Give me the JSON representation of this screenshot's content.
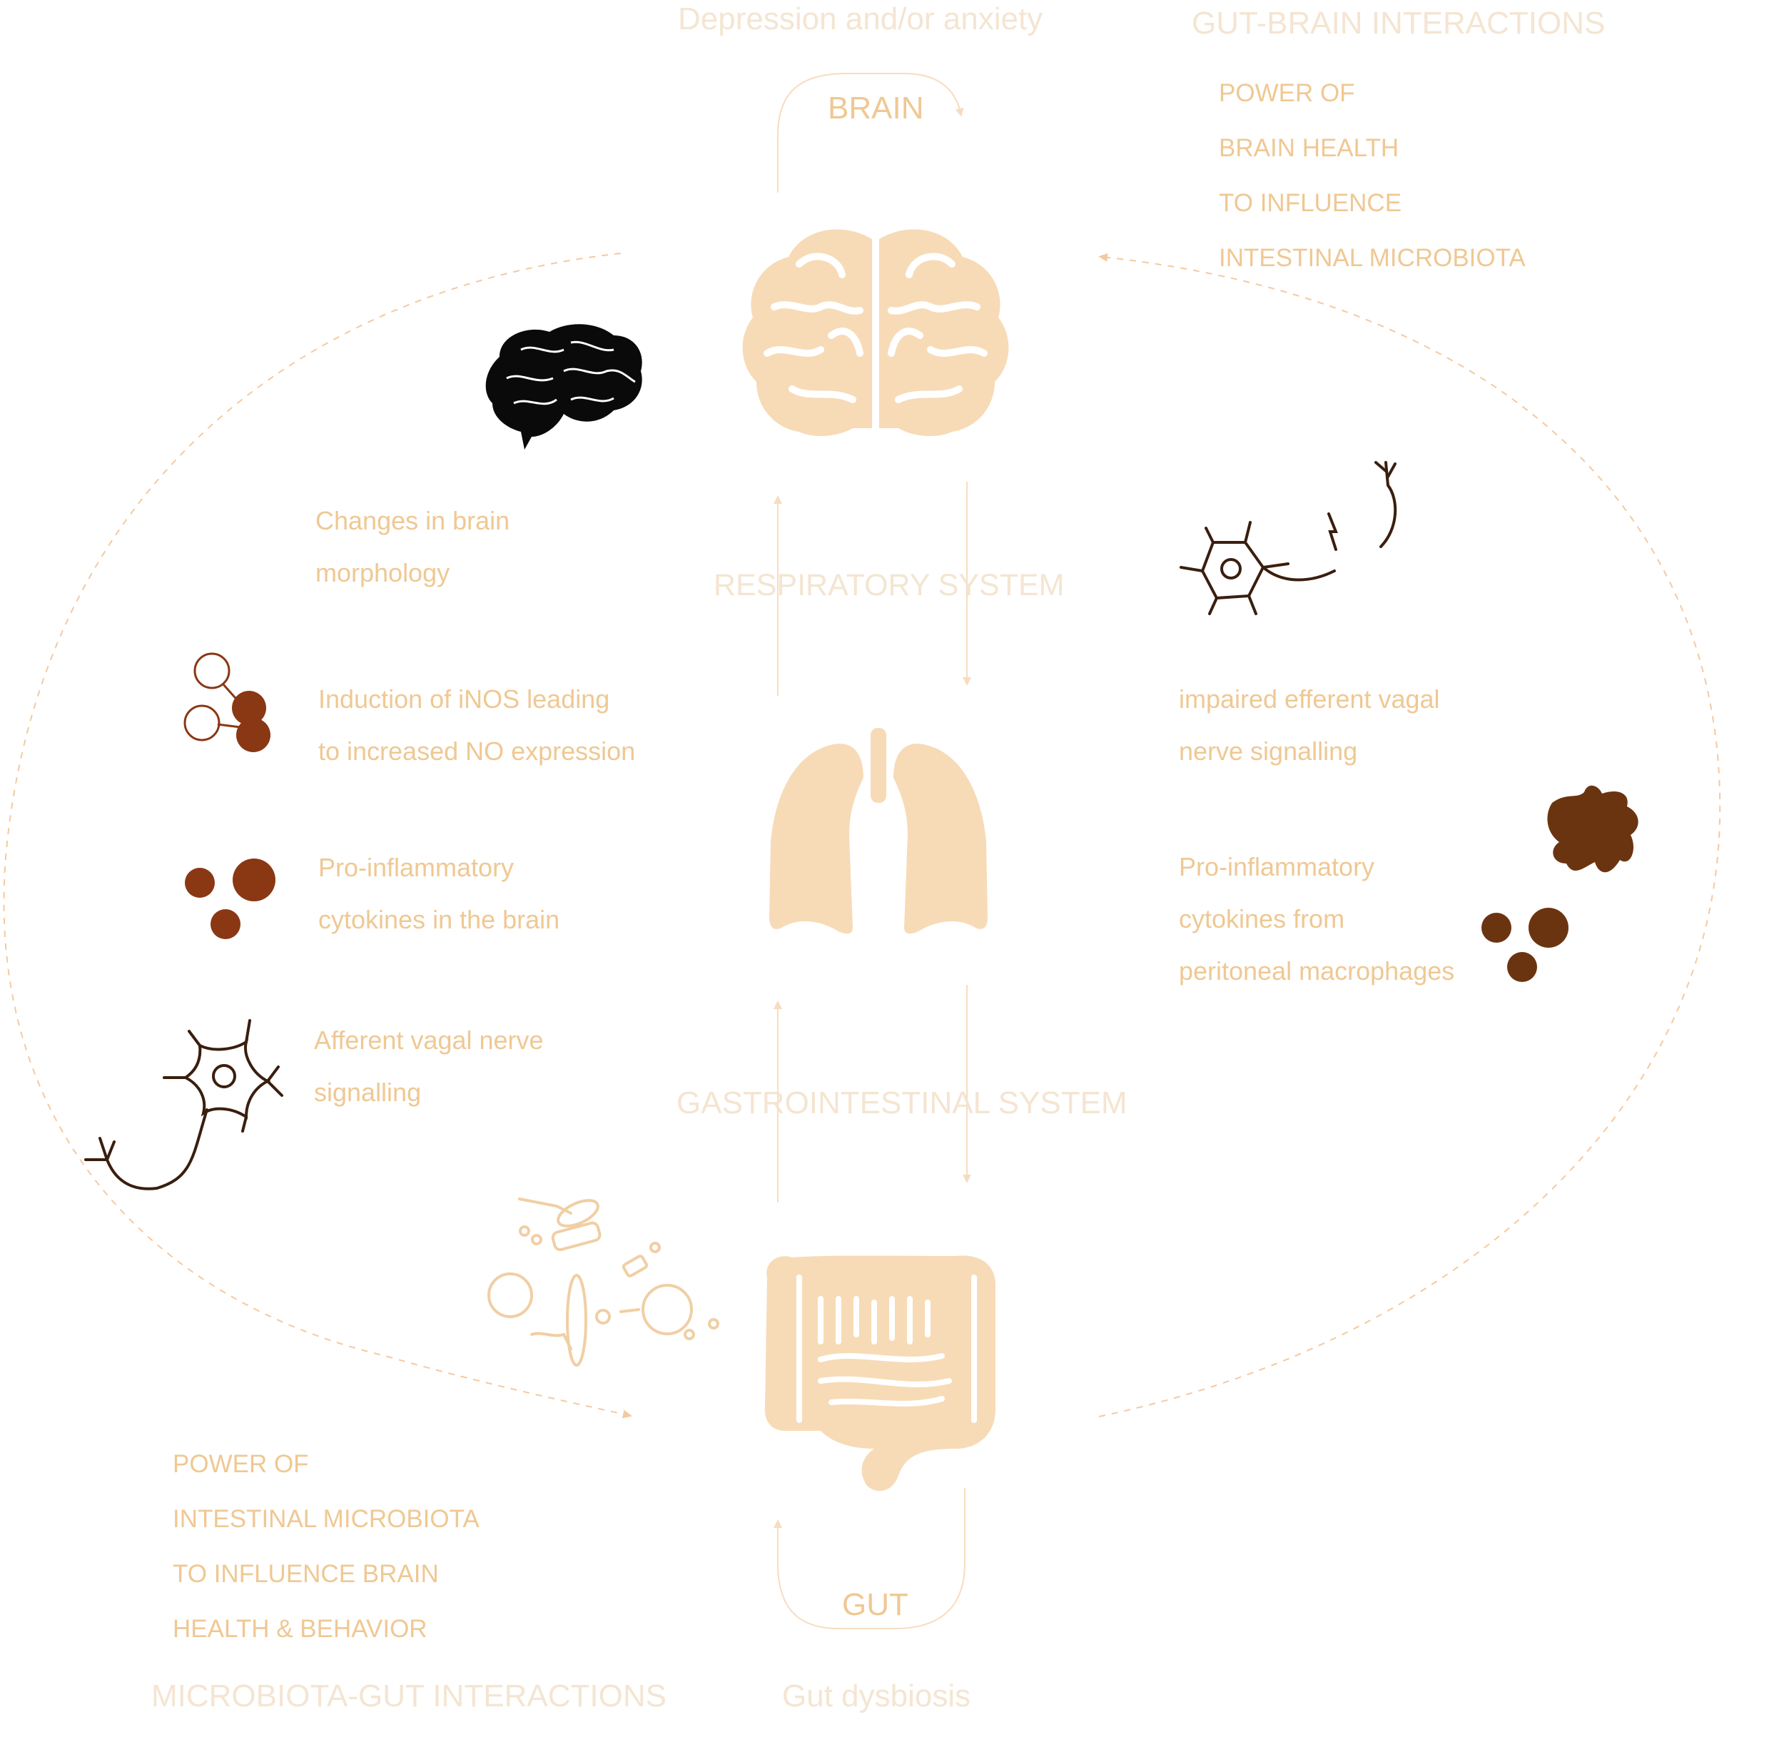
{
  "top": {
    "condition": "Depression and/or anxiety",
    "brain_label": "BRAIN",
    "section_title": "GUT-BRAIN INTERACTIONS",
    "power_lines": [
      "POWER OF",
      "BRAIN HEALTH",
      "TO  INFLUENCE",
      "INTESTINAL MICROBIOTA"
    ]
  },
  "middle": {
    "respiratory": "RESPIRATORY SYSTEM",
    "gastro": "GASTROINTESTINAL SYSTEM"
  },
  "left_effects": {
    "morphology": [
      "Changes in brain",
      "morphology"
    ],
    "inos": [
      "Induction of  iNOS leading",
      "to increased NO expression"
    ],
    "cytokines_brain": [
      "Pro-inflammatory",
      "cytokines in the brain"
    ],
    "afferent": [
      "Afferent vagal nerve",
      "signalling"
    ]
  },
  "right_effects": {
    "efferent": [
      "impaired efferent vagal",
      "nerve signalling"
    ],
    "cytokines_peritoneal": [
      "Pro-inflammatory",
      "cytokines from",
      "peritoneal macrophages"
    ]
  },
  "bottom": {
    "gut_label": "GUT",
    "condition": "Gut dysbiosis",
    "section_title": "MICROBIOTA-GUT INTERACTIONS",
    "power_lines": [
      "POWER OF",
      "INTESTINAL MICROBIOTA",
      "TO  INFLUENCE  BRAIN",
      "HEALTH & BEHAVIOR"
    ]
  },
  "colors": {
    "organ": "#f7dbb7",
    "faint_text": "#f4e5d2",
    "label_text": "#efc893",
    "dashed": "#f5c9a0",
    "dark_brown": "#3a1e0e",
    "cytokine_red": "#8a3714",
    "macrophage": "#6b3410"
  },
  "icons": [
    "brain-organ-icon",
    "lungs-icon",
    "intestine-icon",
    "black-brain-icon",
    "neuron-afferent-icon",
    "neuron-efferent-icon",
    "inos-molecule-icon",
    "cytokine-dots-icon",
    "macrophage-icon",
    "microbiota-icon"
  ]
}
